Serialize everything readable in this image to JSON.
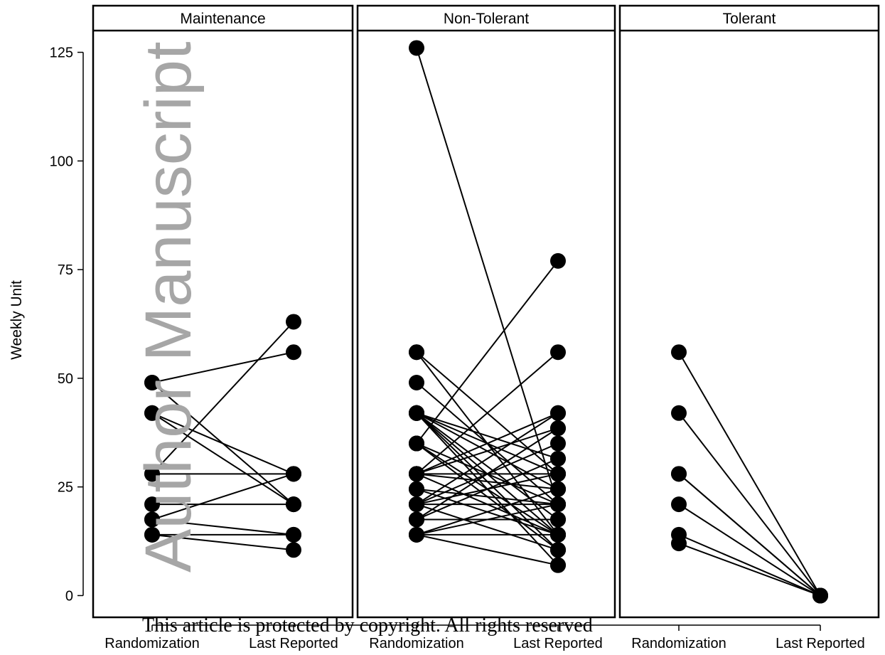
{
  "chart_data": {
    "type": "line",
    "title": "",
    "ylabel": "Weekly Unit",
    "ylim": [
      -5,
      130
    ],
    "yticks": [
      0,
      25,
      50,
      75,
      100,
      125
    ],
    "x_categories": [
      "Randomization",
      "Last Reported"
    ],
    "panels": [
      {
        "name": "Maintenance",
        "pairs": [
          [
            49,
            56
          ],
          [
            49,
            21
          ],
          [
            42,
            28
          ],
          [
            42,
            21
          ],
          [
            28,
            63
          ],
          [
            28,
            28
          ],
          [
            21,
            21
          ],
          [
            17.5,
            28
          ],
          [
            17.5,
            14
          ],
          [
            14,
            14
          ],
          [
            14,
            10.5
          ]
        ]
      },
      {
        "name": "Non-Tolerant",
        "pairs": [
          [
            126,
            21
          ],
          [
            56,
            28
          ],
          [
            56,
            14
          ],
          [
            49,
            21
          ],
          [
            42,
            14
          ],
          [
            42,
            10.5
          ],
          [
            42,
            17.5
          ],
          [
            42,
            24.5
          ],
          [
            42,
            7
          ],
          [
            42,
            31.5
          ],
          [
            42,
            28
          ],
          [
            35,
            77
          ],
          [
            35,
            21
          ],
          [
            35,
            14
          ],
          [
            35,
            10.5
          ],
          [
            28,
            56
          ],
          [
            28,
            38.5
          ],
          [
            28,
            42
          ],
          [
            28,
            28
          ],
          [
            28,
            14
          ],
          [
            28,
            24.5
          ],
          [
            24.5,
            21
          ],
          [
            24.5,
            14
          ],
          [
            21,
            42
          ],
          [
            21,
            35
          ],
          [
            21,
            28
          ],
          [
            21,
            21
          ],
          [
            21,
            10.5
          ],
          [
            17.5,
            38.5
          ],
          [
            17.5,
            31.5
          ],
          [
            17.5,
            17.5
          ],
          [
            14,
            24.5
          ],
          [
            14,
            21
          ],
          [
            14,
            14
          ],
          [
            14,
            7
          ]
        ]
      },
      {
        "name": "Tolerant",
        "pairs": [
          [
            56,
            0
          ],
          [
            42,
            0
          ],
          [
            28,
            0
          ],
          [
            28,
            0
          ],
          [
            21,
            0
          ],
          [
            14,
            0
          ],
          [
            12,
            0
          ]
        ]
      }
    ]
  },
  "watermark_text": "Author Manuscript",
  "notice_text": "This article is protected by copyright. All rights reserved"
}
